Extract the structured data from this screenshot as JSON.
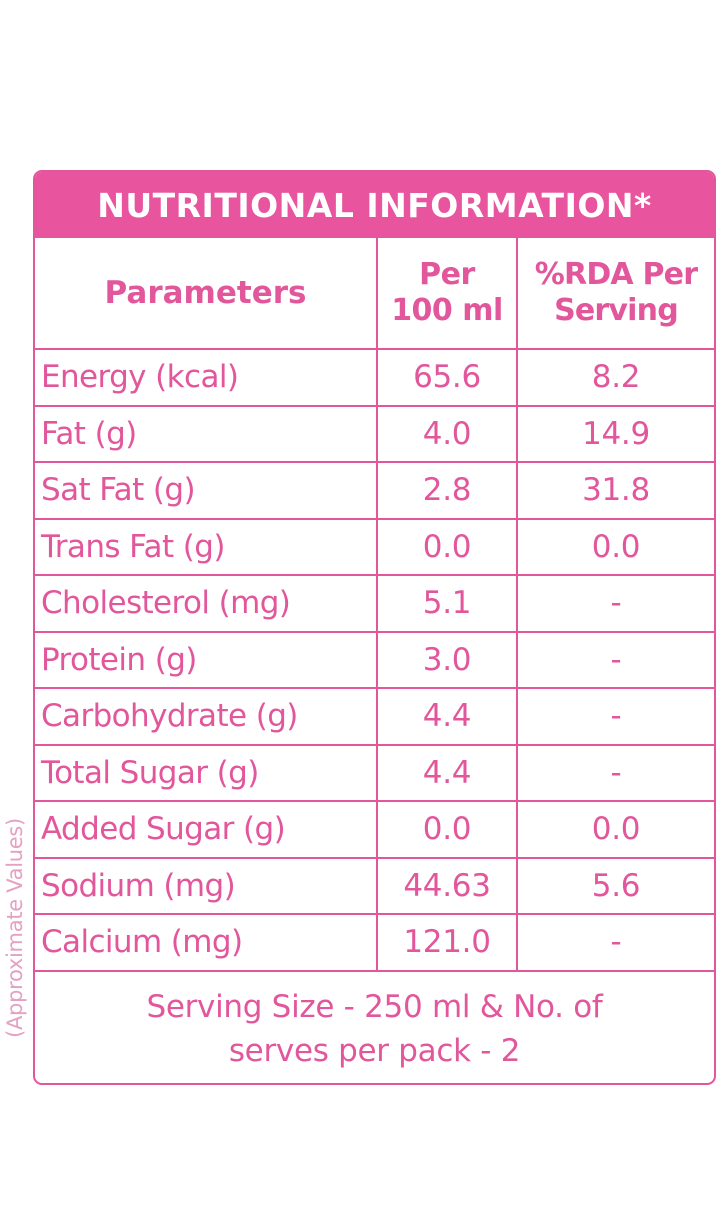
{
  "title": "NUTRITIONAL INFORMATION*",
  "header": {
    "col1": "Parameters",
    "col2_line1": "Per",
    "col2_line2": "100 ml",
    "col3_line1": "%RDA Per",
    "col3_line2": "Serving"
  },
  "rows": [
    {
      "parameter": "Energy (kcal)",
      "per100": "65.6",
      "rda": "8.2"
    },
    {
      "parameter": "Fat (g)",
      "per100": "4.0",
      "rda": "14.9"
    },
    {
      "parameter": "Sat Fat (g)",
      "per100": "2.8",
      "rda": "31.8"
    },
    {
      "parameter": "Trans Fat (g)",
      "per100": "0.0",
      "rda": "0.0"
    },
    {
      "parameter": "Cholesterol (mg)",
      "per100": "5.1",
      "rda": "-"
    },
    {
      "parameter": "Protein (g)",
      "per100": "3.0",
      "rda": "-"
    },
    {
      "parameter": "Carbohydrate (g)",
      "per100": "4.4",
      "rda": "-"
    },
    {
      "parameter": "Total Sugar (g)",
      "per100": "4.4",
      "rda": "-"
    },
    {
      "parameter": "Added Sugar (g)",
      "per100": "0.0",
      "rda": "0.0"
    },
    {
      "parameter": "Sodium (mg)",
      "per100": "44.63",
      "rda": "5.6"
    },
    {
      "parameter": "Calcium (mg)",
      "per100": "121.0",
      "rda": "-"
    }
  ],
  "footer": {
    "line1": "Serving Size - 250 ml & No. of",
    "line2": "serves per pack - 2"
  },
  "side_note": "(Approximate Values)",
  "colors": {
    "accent": "#e8549d",
    "border": "#e2569b",
    "side_note": "#e4a1c4"
  }
}
